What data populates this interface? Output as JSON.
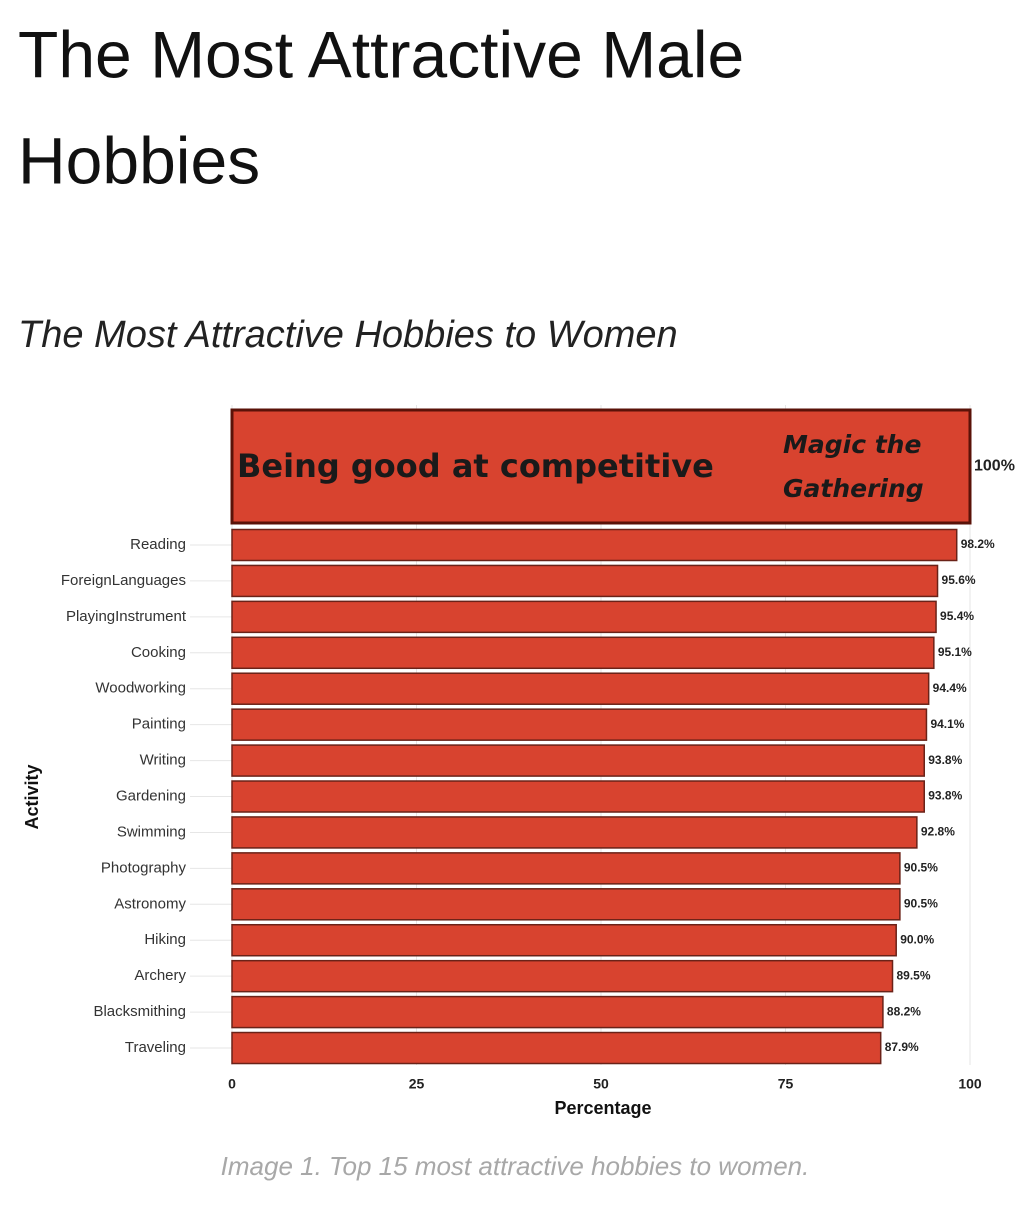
{
  "header": {
    "title": [
      "The Most Attractive Male",
      "Hobbies"
    ]
  },
  "chart_data": {
    "type": "bar",
    "orientation": "horizontal",
    "title": "The Most Attractive Hobbies to Women",
    "x_label": "Percentage",
    "y_label": "Activity",
    "categories": [
      null,
      "Reading",
      "ForeignLanguages",
      "PlayingInstrument",
      "Cooking",
      "Woodworking",
      "Painting",
      "Writing",
      "Gardening",
      "Swimming",
      "Photography",
      "Astronomy",
      "Hiking",
      "Archery",
      "Blacksmithing",
      "Traveling"
    ],
    "values": [
      100,
      98.2,
      95.6,
      95.4,
      95.1,
      94.4,
      94.1,
      93.8,
      93.8,
      92.8,
      90.5,
      90.5,
      90.0,
      89.5,
      88.2,
      87.9
    ],
    "value_labels": [
      "100%",
      "98.2%",
      "95.6%",
      "95.4%",
      "95.1%",
      "94.4%",
      "94.1%",
      "93.8%",
      "93.8%",
      "92.8%",
      "90.5%",
      "90.5%",
      "90.0%",
      "89.5%",
      "88.2%",
      "87.9%"
    ],
    "annotations": [
      "Being good at competitive",
      "Magic the",
      "Gathering"
    ],
    "color": "#d8432f",
    "xlim": [
      0,
      100
    ],
    "xticks": [
      0,
      25,
      50,
      75,
      100
    ],
    "grid": true
  },
  "caption": "Image 1. Top 15 most attractive hobbies to women."
}
